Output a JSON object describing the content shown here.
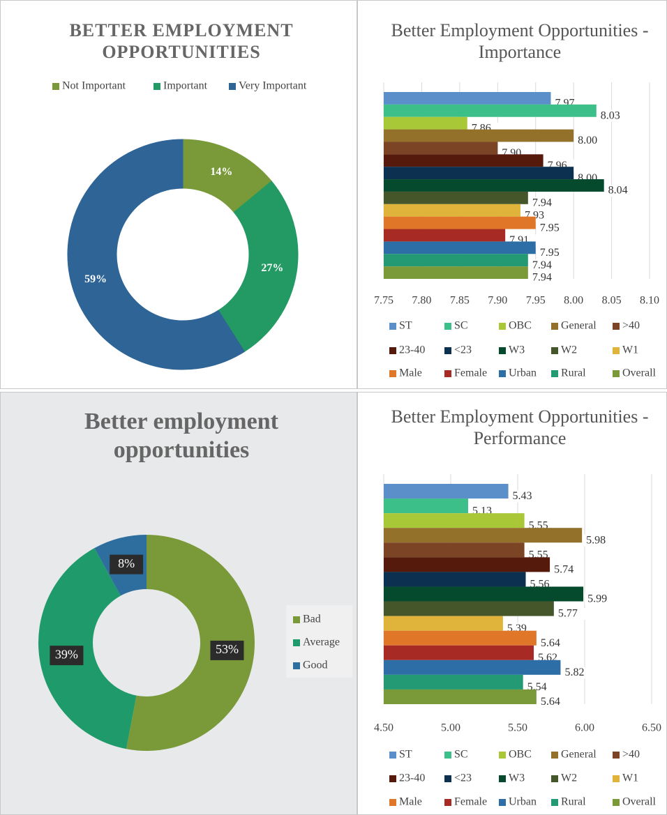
{
  "chart_data": [
    {
      "type": "donut",
      "title": "BETTER EMPLOYMENT OPPORTUNITIES",
      "categories": [
        "Not Important",
        "Important",
        "Very Important"
      ],
      "values": [
        14,
        27,
        59
      ],
      "value_labels": [
        "14%",
        "27%",
        "59%"
      ],
      "colors": [
        "#7a9a3a",
        "#239a63",
        "#2e6496"
      ],
      "legend": "top"
    },
    {
      "type": "bar",
      "title": "Better Employment Opportunities - Importance",
      "categories": [
        "ST",
        "SC",
        "OBC",
        "General",
        ">40",
        "23-40",
        "<23",
        "W3",
        "W2",
        "W1",
        "Male",
        "Female",
        "Urban",
        "Rural",
        "Overall"
      ],
      "values": [
        7.97,
        8.03,
        7.86,
        8.0,
        7.9,
        7.96,
        8.0,
        8.04,
        7.94,
        7.93,
        7.95,
        7.91,
        7.95,
        7.94,
        7.94
      ],
      "value_labels": [
        "7.97",
        "8.03",
        "7.86",
        "8.00",
        "7.90",
        "7.96",
        "8.00",
        "8.04",
        "7.94",
        "7.93",
        "7.95",
        "7.91",
        "7.95",
        "7.94",
        "7.94"
      ],
      "colors": [
        "#5b8fc9",
        "#3dbf8a",
        "#a8c838",
        "#93712a",
        "#7b4424",
        "#561a0d",
        "#0c3050",
        "#064a2e",
        "#45562a",
        "#e0b43a",
        "#e07628",
        "#a82a24",
        "#2e6ea6",
        "#239a73",
        "#7a9a3a"
      ],
      "xlim": [
        7.75,
        8.1
      ],
      "xticks": [
        {
          "value": 7.75,
          "label": "7.75"
        },
        {
          "value": 7.8,
          "label": "7.80"
        },
        {
          "value": 7.85,
          "label": "7.85"
        },
        {
          "value": 7.9,
          "label": "7.90"
        },
        {
          "value": 7.95,
          "label": "7.95"
        },
        {
          "value": 8.0,
          "label": "8.00"
        },
        {
          "value": 8.05,
          "label": "8.05"
        },
        {
          "value": 8.1,
          "label": "8.10"
        }
      ],
      "grid": true,
      "legend": "bottom"
    },
    {
      "type": "donut",
      "title": "Better employment opportunities",
      "categories": [
        "Bad",
        "Average",
        "Good"
      ],
      "values": [
        53,
        39,
        8
      ],
      "value_labels": [
        "53%",
        "39%",
        "8%"
      ],
      "colors": [
        "#7a9a3a",
        "#1f9a6a",
        "#2e6e9e"
      ],
      "legend": "right"
    },
    {
      "type": "bar",
      "title": "Better Employment Opportunities - Performance",
      "categories": [
        "ST",
        "SC",
        "OBC",
        "General",
        ">40",
        "23-40",
        "<23",
        "W3",
        "W2",
        "W1",
        "Male",
        "Female",
        "Urban",
        "Rural",
        "Overall"
      ],
      "values": [
        5.43,
        5.13,
        5.55,
        5.98,
        5.55,
        5.74,
        5.56,
        5.99,
        5.77,
        5.39,
        5.64,
        5.62,
        5.82,
        5.54,
        5.64
      ],
      "colors": [
        "#5b8fc9",
        "#3dbf8a",
        "#a8c838",
        "#93712a",
        "#7b4424",
        "#561a0d",
        "#0c3050",
        "#064a2e",
        "#45562a",
        "#e0b43a",
        "#e07628",
        "#a82a24",
        "#2e6ea6",
        "#239a73",
        "#7a9a3a"
      ],
      "xlim": [
        4.5,
        6.5
      ],
      "xticks": [
        {
          "value": 4.5,
          "label": "4.50"
        },
        {
          "value": 5.0,
          "label": "5.00"
        },
        {
          "value": 5.5,
          "label": "5.50"
        },
        {
          "value": 6.0,
          "label": "6.00"
        },
        {
          "value": 6.5,
          "label": "6.50"
        }
      ],
      "grid": true,
      "legend": "bottom"
    }
  ]
}
